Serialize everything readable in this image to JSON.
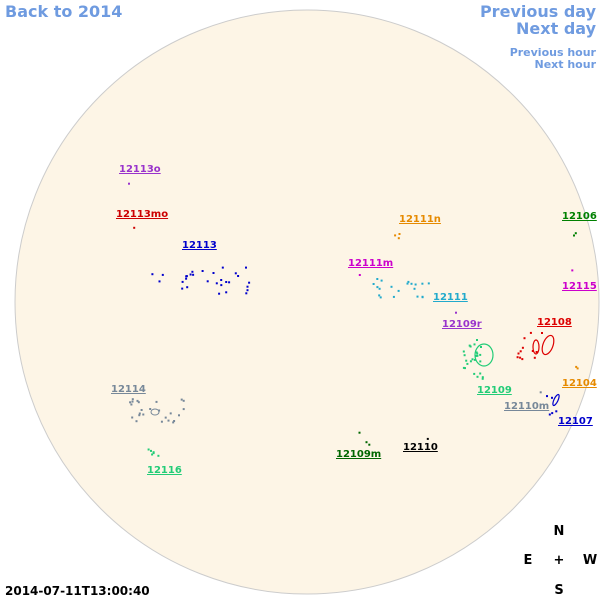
{
  "nav": {
    "back": "Back to 2014",
    "previous_day": "Previous day",
    "next_day": "Next day",
    "previous_hour": "Previous hour",
    "next_hour": "Next hour"
  },
  "regions": [
    {
      "label": "12113o",
      "color": "#9933cc"
    },
    {
      "label": "12113mo",
      "color": "#cc0000"
    },
    {
      "label": "12113",
      "color": "#0000cc"
    },
    {
      "label": "12111n",
      "color": "#e68a00"
    },
    {
      "label": "12106",
      "color": "#008000"
    },
    {
      "label": "12111m",
      "color": "#cc00cc"
    },
    {
      "label": "12115",
      "color": "#cc00cc"
    },
    {
      "label": "12111",
      "color": "#22aacc"
    },
    {
      "label": "12109r",
      "color": "#9933cc"
    },
    {
      "label": "12108",
      "color": "#dd0000"
    },
    {
      "label": "12109",
      "color": "#22cc77"
    },
    {
      "label": "12104",
      "color": "#e68a00"
    },
    {
      "label": "12114",
      "color": "#778899"
    },
    {
      "label": "12110m",
      "color": "#778899"
    },
    {
      "label": "12107",
      "color": "#0000cc"
    },
    {
      "label": "12116",
      "color": "#22cc77"
    },
    {
      "label": "12109m",
      "color": "#006600"
    },
    {
      "label": "12110",
      "color": "#000000"
    }
  ],
  "compass": {
    "north": "N",
    "east": "E",
    "center": "+",
    "west": "W",
    "south": "S"
  },
  "timestamp": "2014-07-11T13:00:40"
}
